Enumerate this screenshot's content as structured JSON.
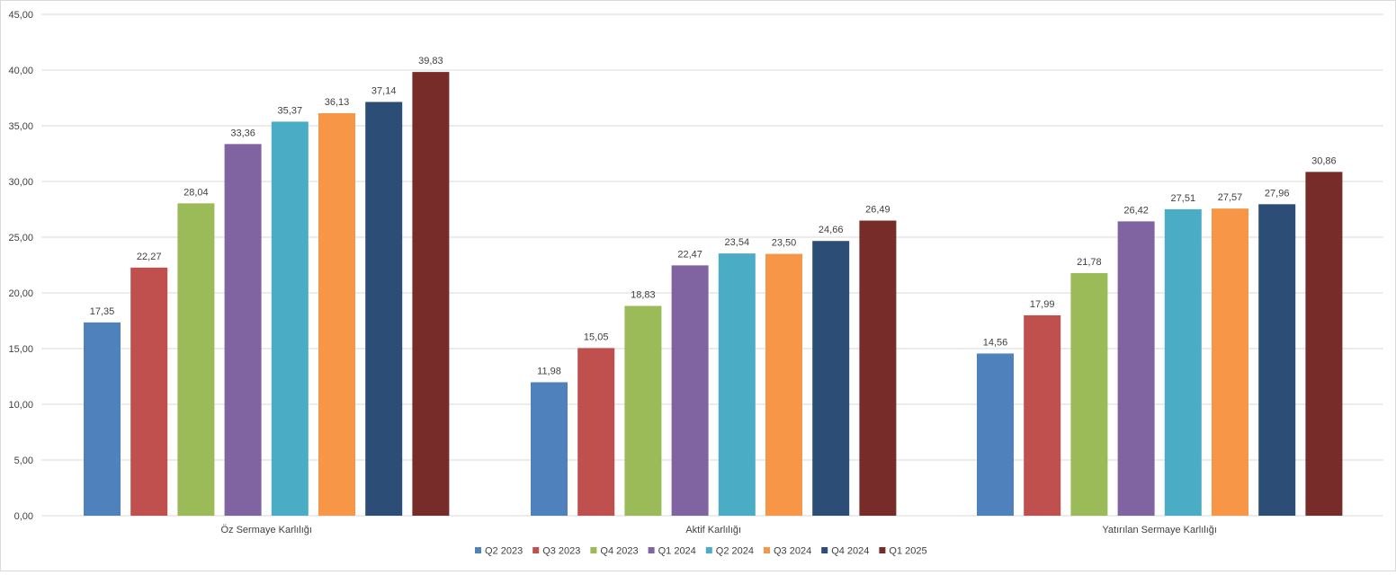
{
  "chart_data": {
    "type": "bar",
    "title": "",
    "xlabel": "",
    "ylabel": "",
    "ylim": [
      0,
      45
    ],
    "y_ticks": [
      "0,00",
      "5,00",
      "10,00",
      "15,00",
      "20,00",
      "25,00",
      "30,00",
      "35,00",
      "40,00",
      "45,00"
    ],
    "grid": true,
    "legend_position": "bottom",
    "categories": [
      "Öz Sermaye Karlılığı",
      "Aktif Karlılığı",
      "Yatırılan Sermaye Karlılığı"
    ],
    "series": [
      {
        "name": "Q2 2023",
        "color": "#4f81bd",
        "values": [
          17.35,
          11.98,
          14.56
        ],
        "labels": [
          "17,35",
          "11,98",
          "14,56"
        ]
      },
      {
        "name": "Q3 2023",
        "color": "#c0504d",
        "values": [
          22.27,
          15.05,
          17.99
        ],
        "labels": [
          "22,27",
          "15,05",
          "17,99"
        ]
      },
      {
        "name": "Q4 2023",
        "color": "#9bbb59",
        "values": [
          28.04,
          18.83,
          21.78
        ],
        "labels": [
          "28,04",
          "18,83",
          "21,78"
        ]
      },
      {
        "name": "Q1 2024",
        "color": "#8064a2",
        "values": [
          33.36,
          22.47,
          26.42
        ],
        "labels": [
          "33,36",
          "22,47",
          "26,42"
        ]
      },
      {
        "name": "Q2 2024",
        "color": "#4bacc6",
        "values": [
          35.37,
          23.54,
          27.51
        ],
        "labels": [
          "35,37",
          "23,54",
          "27,51"
        ]
      },
      {
        "name": "Q3 2024",
        "color": "#f79646",
        "values": [
          36.13,
          23.5,
          27.57
        ],
        "labels": [
          "36,13",
          "23,50",
          "27,57"
        ]
      },
      {
        "name": "Q4 2024",
        "color": "#2c4d75",
        "values": [
          37.14,
          24.66,
          27.96
        ],
        "labels": [
          "37,14",
          "24,66",
          "27,96"
        ]
      },
      {
        "name": "Q1 2025",
        "color": "#772c2a",
        "values": [
          39.83,
          26.49,
          30.86
        ],
        "labels": [
          "39,83",
          "26,49",
          "30,86"
        ]
      }
    ]
  }
}
